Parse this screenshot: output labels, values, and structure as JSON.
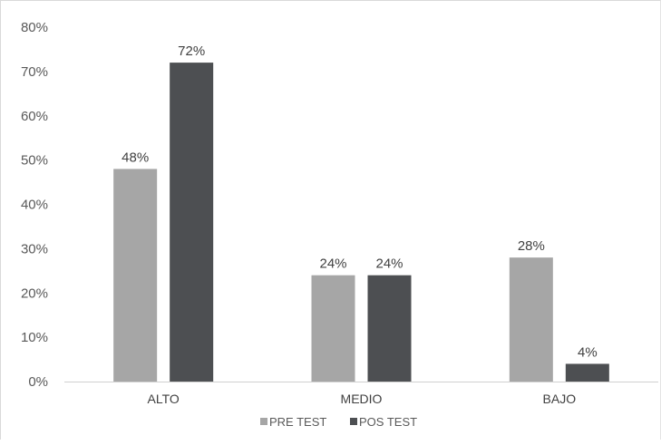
{
  "chart_data": {
    "type": "bar",
    "categories": [
      "ALTO",
      "MEDIO",
      "BAJO"
    ],
    "series": [
      {
        "name": "PRE TEST",
        "values": [
          48,
          24,
          28
        ],
        "labels": [
          "48%",
          "24%",
          "28%"
        ],
        "color": "#a6a6a6"
      },
      {
        "name": "POS TEST",
        "values": [
          72,
          24,
          4
        ],
        "labels": [
          "72%",
          "24%",
          "4%"
        ],
        "color": "#4d4f52"
      }
    ],
    "ylim": [
      0,
      80
    ],
    "yticks": [
      0,
      10,
      20,
      30,
      40,
      50,
      60,
      70,
      80
    ],
    "ytick_labels": [
      "0%",
      "10%",
      "20%",
      "30%",
      "40%",
      "50%",
      "60%",
      "70%",
      "80%"
    ],
    "grid": false,
    "legend": "bottom"
  }
}
